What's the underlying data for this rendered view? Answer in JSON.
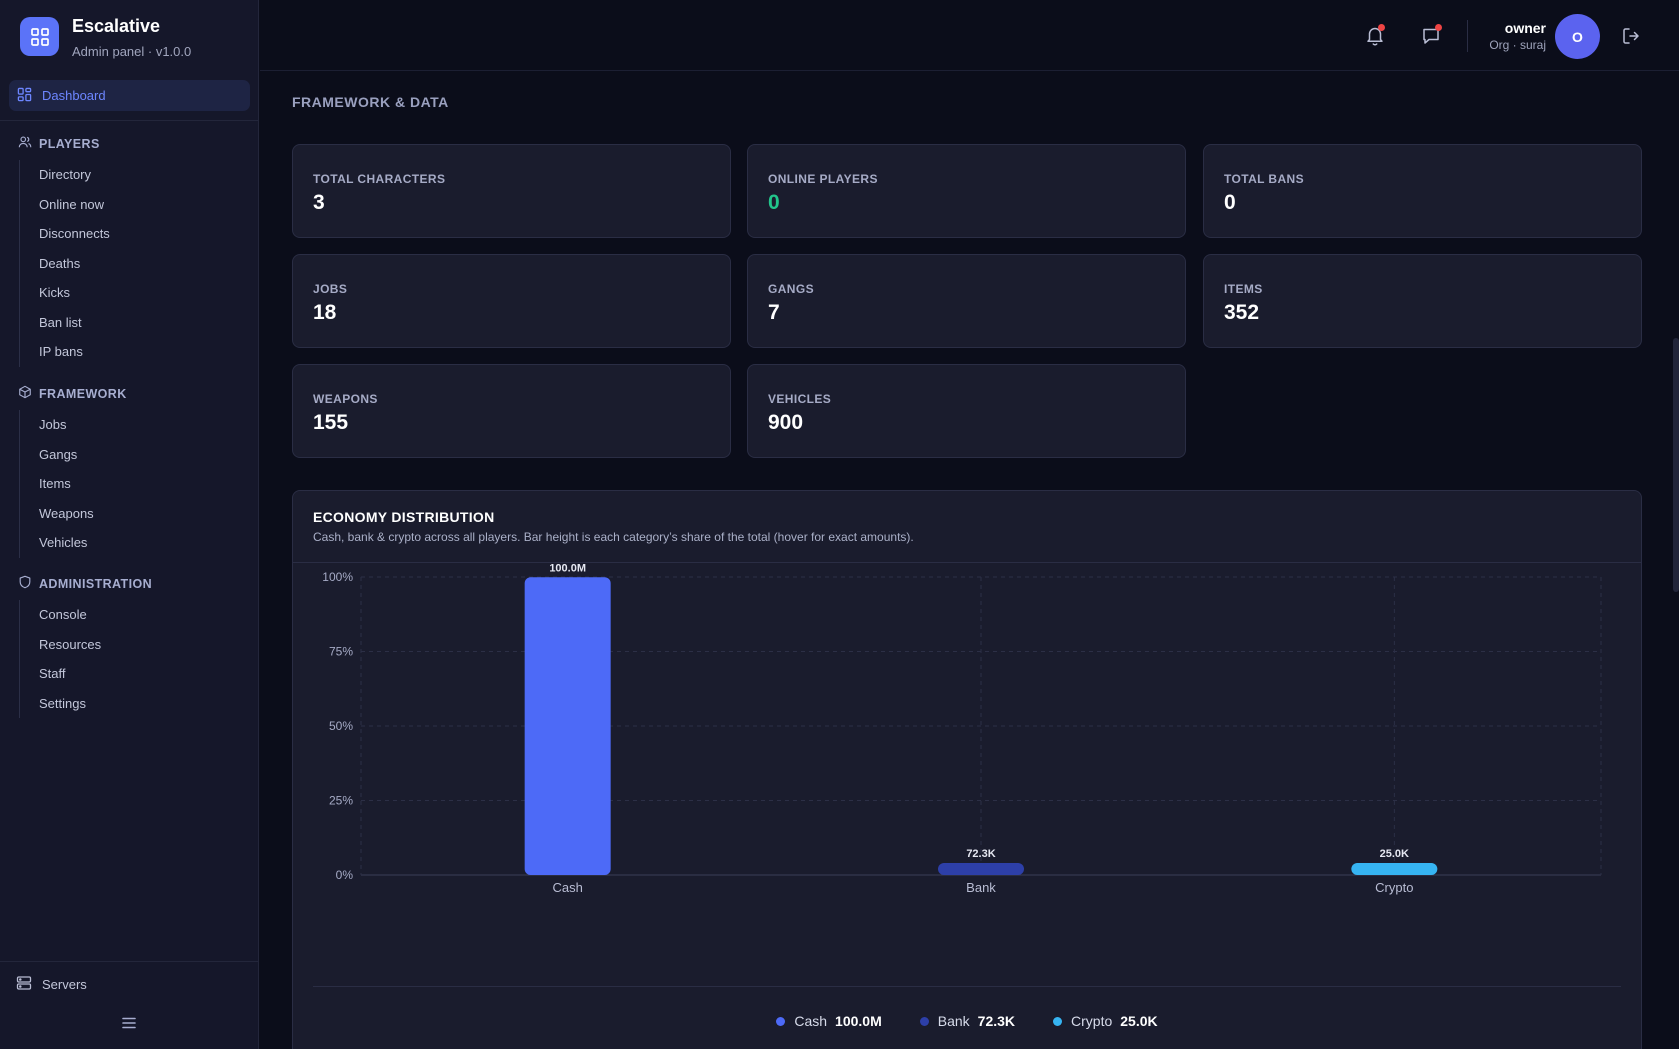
{
  "brand": {
    "name": "Escalative",
    "subtitle": "Admin panel · v1.0.0"
  },
  "nav": {
    "active": "Dashboard",
    "sections": [
      {
        "title": "PLAYERS",
        "icon": "users-icon",
        "items": [
          "Directory",
          "Online now",
          "Disconnects",
          "Deaths",
          "Kicks",
          "Ban list",
          "IP bans"
        ]
      },
      {
        "title": "FRAMEWORK",
        "icon": "box-icon",
        "items": [
          "Jobs",
          "Gangs",
          "Items",
          "Weapons",
          "Vehicles"
        ]
      },
      {
        "title": "ADMINISTRATION",
        "icon": "shield-icon",
        "items": [
          "Console",
          "Resources",
          "Staff",
          "Settings"
        ]
      }
    ],
    "footer": "Servers"
  },
  "header": {
    "user_name": "owner",
    "user_org": "Org · suraj",
    "avatar_initial": "O"
  },
  "page": {
    "title": "FRAMEWORK & DATA"
  },
  "stats": [
    {
      "label": "TOTAL CHARACTERS",
      "value": "3"
    },
    {
      "label": "ONLINE PLAYERS",
      "value": "0",
      "color": "#22c58b"
    },
    {
      "label": "TOTAL BANS",
      "value": "0"
    },
    {
      "label": "JOBS",
      "value": "18"
    },
    {
      "label": "GANGS",
      "value": "7"
    },
    {
      "label": "ITEMS",
      "value": "352"
    },
    {
      "label": "WEAPONS",
      "value": "155"
    },
    {
      "label": "VEHICLES",
      "value": "900"
    }
  ],
  "economy": {
    "title": "ECONOMY DISTRIBUTION",
    "subtitle": "Cash, bank & crypto across all players. Bar height is each category’s share of the total (hover for exact amounts)."
  },
  "chart_data": {
    "type": "bar",
    "categories": [
      "Cash",
      "Bank",
      "Crypto"
    ],
    "values": [
      100000000,
      72300,
      25000
    ],
    "value_labels": [
      "100.0M",
      "72.3K",
      "25.0K"
    ],
    "colors": [
      "#4d6af7",
      "#2d3fa8",
      "#36b4f2"
    ],
    "yticks": [
      "0%",
      "25%",
      "50%",
      "75%",
      "100%"
    ],
    "ylim": [
      0,
      100
    ],
    "grid": true,
    "legend": "bottom-center",
    "title": "",
    "xlabel": "",
    "ylabel": ""
  }
}
